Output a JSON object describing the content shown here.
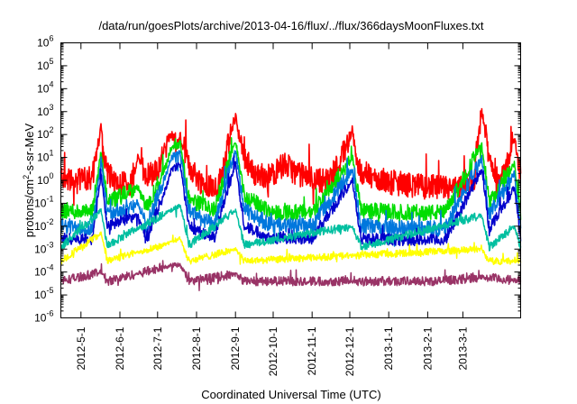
{
  "chart_data": {
    "type": "line",
    "title": "/data/run/goesPlots/archive/2013-04-16/flux/../flux/366daysMoonFluxes.txt",
    "xlabel": "Coordinated Universal Time (UTC)",
    "ylabel_base": "protons/cm",
    "ylabel_sup": "2",
    "ylabel_rest": "-s-sr-MeV",
    "yscale": "log",
    "ylim": [
      1e-06,
      1000000.0
    ],
    "yticks": [
      {
        "exp": "-6",
        "value": 1e-06
      },
      {
        "exp": "-5",
        "value": 1e-05
      },
      {
        "exp": "-4",
        "value": 0.0001
      },
      {
        "exp": "-3",
        "value": 0.001
      },
      {
        "exp": "-2",
        "value": 0.01
      },
      {
        "exp": "-1",
        "value": 0.1
      },
      {
        "exp": "0",
        "value": 1
      },
      {
        "exp": "1",
        "value": 10.0
      },
      {
        "exp": "2",
        "value": 100.0
      },
      {
        "exp": "3",
        "value": 1000.0
      },
      {
        "exp": "4",
        "value": 10000.0
      },
      {
        "exp": "5",
        "value": 100000.0
      },
      {
        "exp": "6",
        "value": 1000000.0
      }
    ],
    "xlim": [
      "2012-04-15",
      "2013-04-16"
    ],
    "xticks": [
      "2012-5-1",
      "2012-6-1",
      "2012-7-1",
      "2012-8-1",
      "2012-9-1",
      "2012-10-1",
      "2012-11-1",
      "2012-12-1",
      "2013-1-1",
      "2013-2-1",
      "2013-3-1"
    ],
    "grid": false,
    "legend": "none",
    "event_dates": [
      "2012-05-17",
      "2012-06-15",
      "2012-07-08",
      "2012-07-12",
      "2012-07-19",
      "2012-09-01",
      "2012-12-03",
      "2013-03-16",
      "2013-04-11"
    ],
    "series": [
      {
        "color": "#ff0000",
        "points": [
          [
            "2012-04-15",
            1.2
          ],
          [
            "2012-04-28",
            0.9
          ],
          [
            "2012-05-10",
            1.5
          ],
          [
            "2012-05-17",
            180
          ],
          [
            "2012-05-20",
            4
          ],
          [
            "2012-05-28",
            0.8
          ],
          [
            "2012-06-10",
            0.7
          ],
          [
            "2012-06-15",
            10
          ],
          [
            "2012-06-22",
            1.2
          ],
          [
            "2012-07-01",
            3
          ],
          [
            "2012-07-08",
            40
          ],
          [
            "2012-07-12",
            150
          ],
          [
            "2012-07-16",
            30
          ],
          [
            "2012-07-19",
            80
          ],
          [
            "2012-07-25",
            5
          ],
          [
            "2012-08-05",
            0.8
          ],
          [
            "2012-08-18",
            0.5
          ],
          [
            "2012-09-01",
            700
          ],
          [
            "2012-09-06",
            20
          ],
          [
            "2012-09-15",
            2
          ],
          [
            "2012-09-28",
            1.5
          ],
          [
            "2012-10-10",
            5
          ],
          [
            "2012-10-20",
            2
          ],
          [
            "2012-11-01",
            1.2
          ],
          [
            "2012-11-15",
            0.9
          ],
          [
            "2012-12-03",
            120
          ],
          [
            "2012-12-08",
            3
          ],
          [
            "2012-12-20",
            1.2
          ],
          [
            "2013-01-05",
            0.8
          ],
          [
            "2013-01-20",
            0.6
          ],
          [
            "2013-02-05",
            0.5
          ],
          [
            "2013-02-25",
            0.4
          ],
          [
            "2013-03-10",
            1
          ],
          [
            "2013-03-16",
            1300
          ],
          [
            "2013-03-22",
            8
          ],
          [
            "2013-04-01",
            1
          ],
          [
            "2013-04-11",
            60
          ],
          [
            "2013-04-16",
            2
          ]
        ]
      },
      {
        "color": "#00dd00",
        "points": [
          [
            "2012-04-15",
            0.05
          ],
          [
            "2012-05-10",
            0.04
          ],
          [
            "2012-05-17",
            20
          ],
          [
            "2012-05-22",
            0.1
          ],
          [
            "2012-06-15",
            0.5
          ],
          [
            "2012-06-22",
            0.06
          ],
          [
            "2012-07-08",
            5
          ],
          [
            "2012-07-12",
            30
          ],
          [
            "2012-07-19",
            40
          ],
          [
            "2012-07-26",
            0.15
          ],
          [
            "2012-08-15",
            0.05
          ],
          [
            "2012-09-01",
            60
          ],
          [
            "2012-09-08",
            0.2
          ],
          [
            "2012-10-01",
            0.04
          ],
          [
            "2012-11-01",
            0.04
          ],
          [
            "2012-12-03",
            10
          ],
          [
            "2012-12-10",
            0.05
          ],
          [
            "2013-01-15",
            0.04
          ],
          [
            "2013-02-15",
            0.04
          ],
          [
            "2013-03-16",
            40
          ],
          [
            "2013-03-22",
            0.1
          ],
          [
            "2013-04-11",
            5
          ],
          [
            "2013-04-16",
            0.03
          ]
        ]
      },
      {
        "color": "#0077dd",
        "points": [
          [
            "2012-04-15",
            0.01
          ],
          [
            "2012-05-10",
            0.008
          ],
          [
            "2012-05-17",
            8
          ],
          [
            "2012-05-22",
            0.03
          ],
          [
            "2012-06-15",
            0.1
          ],
          [
            "2012-06-22",
            0.01
          ],
          [
            "2012-07-08",
            2
          ],
          [
            "2012-07-12",
            10
          ],
          [
            "2012-07-19",
            15
          ],
          [
            "2012-07-26",
            0.05
          ],
          [
            "2012-08-15",
            0.01
          ],
          [
            "2012-09-01",
            20
          ],
          [
            "2012-09-08",
            0.05
          ],
          [
            "2012-10-01",
            0.01
          ],
          [
            "2012-11-01",
            0.01
          ],
          [
            "2012-12-03",
            3
          ],
          [
            "2012-12-10",
            0.01
          ],
          [
            "2013-01-15",
            0.008
          ],
          [
            "2013-02-15",
            0.008
          ],
          [
            "2013-03-16",
            10
          ],
          [
            "2013-03-22",
            0.03
          ],
          [
            "2013-04-11",
            2
          ],
          [
            "2013-04-16",
            0.008
          ]
        ]
      },
      {
        "color": "#0000cc",
        "points": [
          [
            "2012-04-15",
            0.003
          ],
          [
            "2012-05-10",
            0.0025
          ],
          [
            "2012-05-17",
            2
          ],
          [
            "2012-05-22",
            0.01
          ],
          [
            "2012-06-15",
            0.03
          ],
          [
            "2012-06-22",
            0.003
          ],
          [
            "2012-07-08",
            0.5
          ],
          [
            "2012-07-12",
            3
          ],
          [
            "2012-07-19",
            5
          ],
          [
            "2012-07-26",
            0.01
          ],
          [
            "2012-08-15",
            0.003
          ],
          [
            "2012-09-01",
            6
          ],
          [
            "2012-09-08",
            0.01
          ],
          [
            "2012-10-01",
            0.003
          ],
          [
            "2012-11-01",
            0.003
          ],
          [
            "2012-12-03",
            1
          ],
          [
            "2012-12-10",
            0.003
          ],
          [
            "2013-01-15",
            0.0025
          ],
          [
            "2013-02-15",
            0.0025
          ],
          [
            "2013-03-16",
            3
          ],
          [
            "2013-03-22",
            0.008
          ],
          [
            "2013-04-11",
            0.5
          ],
          [
            "2013-04-16",
            0.003
          ]
        ]
      },
      {
        "color": "#00bfa0",
        "points": [
          [
            "2012-04-15",
            0.0012
          ],
          [
            "2012-05-17",
            0.05
          ],
          [
            "2012-05-22",
            0.0015
          ],
          [
            "2012-07-12",
            0.05
          ],
          [
            "2012-07-19",
            0.08
          ],
          [
            "2012-07-26",
            0.0015
          ],
          [
            "2012-09-01",
            0.05
          ],
          [
            "2012-09-08",
            0.0015
          ],
          [
            "2012-12-03",
            0.01
          ],
          [
            "2012-12-10",
            0.0012
          ],
          [
            "2013-03-16",
            0.03
          ],
          [
            "2013-03-22",
            0.0012
          ],
          [
            "2013-04-11",
            0.01
          ],
          [
            "2013-04-16",
            0.0012
          ]
        ]
      },
      {
        "color": "#ffff00",
        "points": [
          [
            "2012-04-15",
            0.0003
          ],
          [
            "2012-05-17",
            0.005
          ],
          [
            "2012-05-22",
            0.0003
          ],
          [
            "2012-07-12",
            0.002
          ],
          [
            "2012-07-19",
            0.003
          ],
          [
            "2012-07-26",
            0.0003
          ],
          [
            "2012-09-01",
            0.001
          ],
          [
            "2012-09-08",
            0.0003
          ],
          [
            "2013-03-16",
            0.001
          ],
          [
            "2013-03-22",
            0.0003
          ],
          [
            "2013-04-16",
            0.0003
          ]
        ]
      },
      {
        "color": "#993366",
        "points": [
          [
            "2012-04-15",
            4e-05
          ],
          [
            "2012-05-17",
            0.0001
          ],
          [
            "2012-05-22",
            4e-05
          ],
          [
            "2012-07-12",
            0.0002
          ],
          [
            "2012-07-19",
            0.0002
          ],
          [
            "2012-07-26",
            4e-05
          ],
          [
            "2012-09-01",
            8e-05
          ],
          [
            "2012-09-08",
            4e-05
          ],
          [
            "2013-02-10",
            4e-05
          ],
          [
            "2013-03-16",
            6e-05
          ],
          [
            "2013-04-16",
            4e-05
          ]
        ]
      }
    ]
  }
}
